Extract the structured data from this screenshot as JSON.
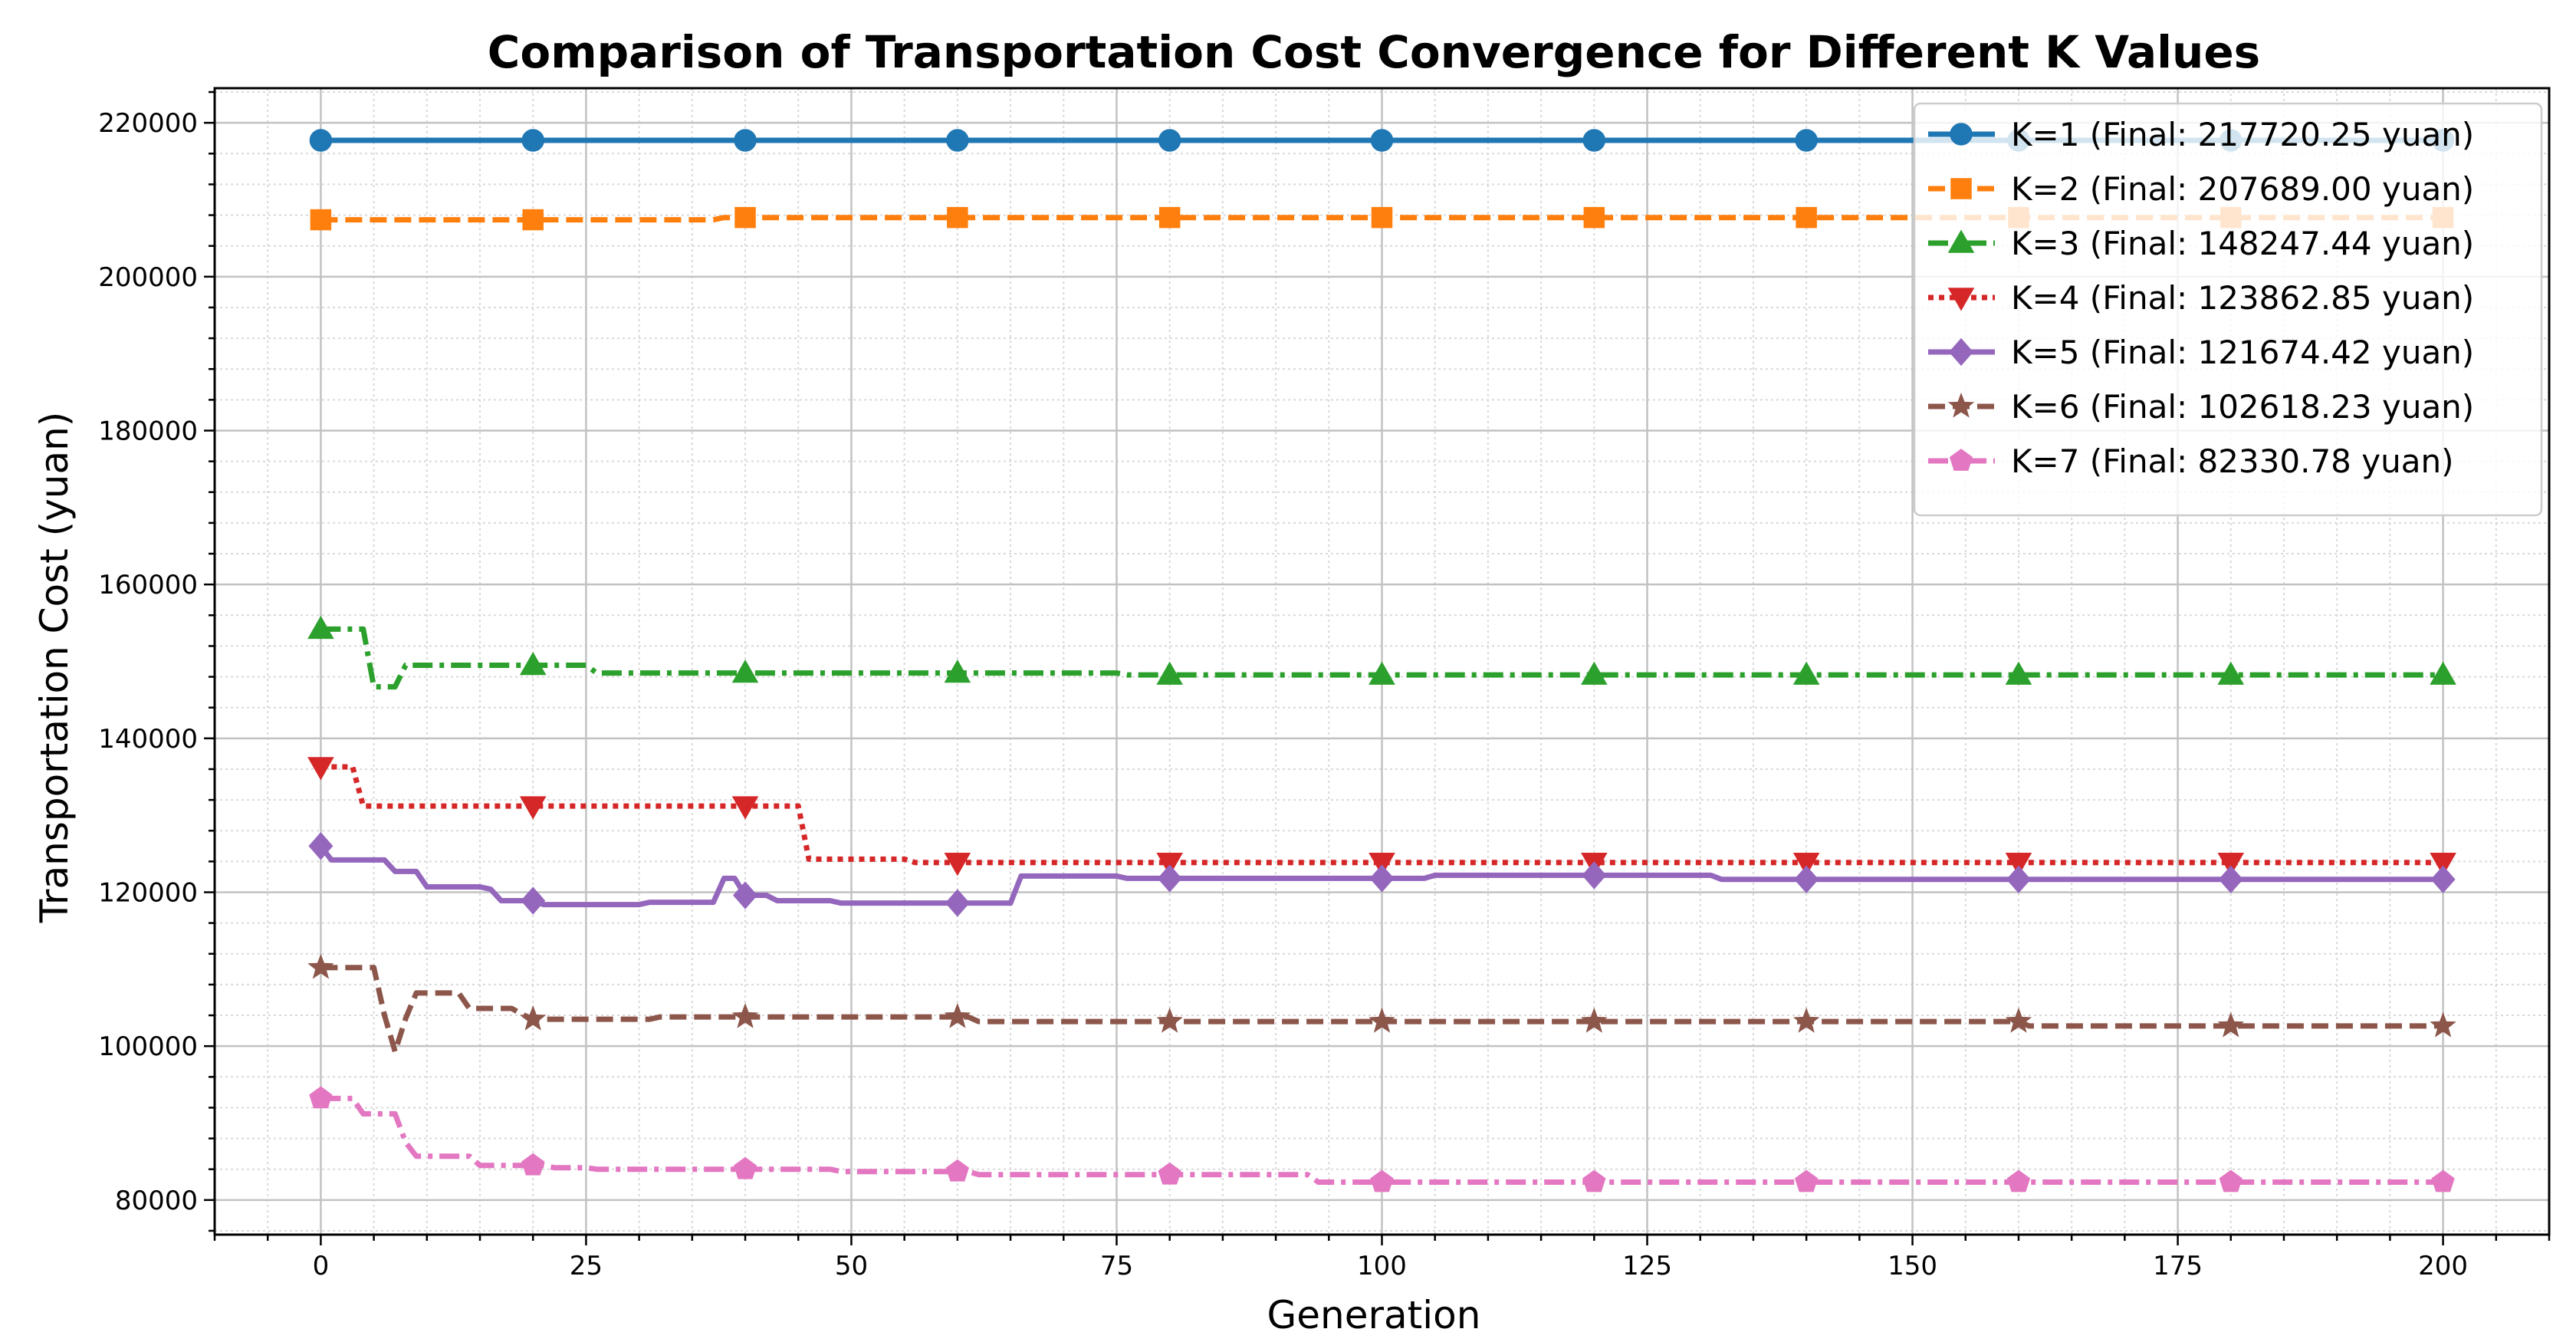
{
  "chart_data": {
    "type": "line",
    "title": "Comparison of Transportation Cost Convergence for Different K Values",
    "xlabel": "Generation",
    "ylabel": "Transportation Cost (yuan)",
    "xlim": [
      -10,
      210
    ],
    "ylim": [
      75500,
      224500
    ],
    "xticks": [
      0,
      25,
      50,
      75,
      100,
      125,
      150,
      175,
      200
    ],
    "yticks": [
      80000,
      100000,
      120000,
      140000,
      160000,
      180000,
      200000,
      220000
    ],
    "xtick_labels": [
      "0",
      "25",
      "50",
      "75",
      "100",
      "125",
      "150",
      "175",
      "200"
    ],
    "ytick_labels": [
      "80000",
      "100000",
      "120000",
      "140000",
      "160000",
      "180000",
      "200000",
      "220000"
    ],
    "grid": true,
    "minor_grid": true,
    "legend_position": "top-right",
    "marker_every": 20,
    "series": [
      {
        "name": "K=1 (Final: 217720.25 yuan)",
        "color": "#1f77b4",
        "marker": "circle",
        "linestyle": "solid",
        "points": [
          [
            0,
            217720.25
          ],
          [
            200,
            217720.25
          ]
        ]
      },
      {
        "name": "K=2 (Final: 207689.00 yuan)",
        "color": "#ff7f0e",
        "marker": "square",
        "linestyle": "dashed",
        "points": [
          [
            0,
            207400
          ],
          [
            37,
            207400
          ],
          [
            38,
            207689
          ],
          [
            200,
            207689
          ]
        ]
      },
      {
        "name": "K=3 (Final: 148247.44 yuan)",
        "color": "#2ca02c",
        "marker": "triangle-up",
        "linestyle": "dashdot",
        "points": [
          [
            0,
            154200
          ],
          [
            4,
            154200
          ],
          [
            5,
            146700
          ],
          [
            7,
            146700
          ],
          [
            8,
            149500
          ],
          [
            25,
            149500
          ],
          [
            26,
            148500
          ],
          [
            75,
            148500
          ],
          [
            76,
            148247.44
          ],
          [
            200,
            148247.44
          ]
        ]
      },
      {
        "name": "K=4 (Final: 123862.85 yuan)",
        "color": "#d62728",
        "marker": "triangle-down",
        "linestyle": "dotted",
        "points": [
          [
            0,
            136300
          ],
          [
            3,
            136300
          ],
          [
            4,
            131200
          ],
          [
            45,
            131200
          ],
          [
            46,
            124300
          ],
          [
            55,
            124300
          ],
          [
            56,
            123862.85
          ],
          [
            200,
            123862.85
          ]
        ]
      },
      {
        "name": "K=5 (Final: 121674.42 yuan)",
        "color": "#9467bd",
        "marker": "diamond",
        "linestyle": "solid",
        "points": [
          [
            0,
            126000
          ],
          [
            1,
            124200
          ],
          [
            6,
            124200
          ],
          [
            7,
            122700
          ],
          [
            9,
            122700
          ],
          [
            10,
            120700
          ],
          [
            15,
            120700
          ],
          [
            16,
            120400
          ],
          [
            17,
            118900
          ],
          [
            20,
            118900
          ],
          [
            21,
            118400
          ],
          [
            30,
            118400
          ],
          [
            31,
            118700
          ],
          [
            37,
            118700
          ],
          [
            38,
            121800
          ],
          [
            39,
            121800
          ],
          [
            40,
            119600
          ],
          [
            42,
            119600
          ],
          [
            43,
            118900
          ],
          [
            48,
            118900
          ],
          [
            49,
            118600
          ],
          [
            65,
            118600
          ],
          [
            66,
            122100
          ],
          [
            75,
            122100
          ],
          [
            76,
            121800
          ],
          [
            104,
            121800
          ],
          [
            105,
            122200
          ],
          [
            131,
            122200
          ],
          [
            132,
            121674.42
          ],
          [
            200,
            121674.42
          ]
        ]
      },
      {
        "name": "K=6 (Final: 102618.23 yuan)",
        "color": "#8c564b",
        "marker": "star",
        "linestyle": "dashed",
        "points": [
          [
            0,
            110200
          ],
          [
            5,
            110200
          ],
          [
            6,
            104000
          ],
          [
            7,
            99300
          ],
          [
            8,
            103600
          ],
          [
            9,
            106900
          ],
          [
            13,
            106900
          ],
          [
            14,
            104900
          ],
          [
            18,
            104900
          ],
          [
            19,
            104100
          ],
          [
            20,
            103500
          ],
          [
            31,
            103500
          ],
          [
            32,
            103800
          ],
          [
            61,
            103800
          ],
          [
            62,
            103200
          ],
          [
            160,
            103200
          ],
          [
            161,
            102618.23
          ],
          [
            200,
            102618.23
          ]
        ]
      },
      {
        "name": "K=7 (Final: 82330.78 yuan)",
        "color": "#e377c2",
        "marker": "pentagon",
        "linestyle": "dashdot",
        "points": [
          [
            0,
            93200
          ],
          [
            3,
            93200
          ],
          [
            4,
            91200
          ],
          [
            7,
            91200
          ],
          [
            8,
            87500
          ],
          [
            9,
            85700
          ],
          [
            14,
            85700
          ],
          [
            15,
            84500
          ],
          [
            21,
            84500
          ],
          [
            22,
            84200
          ],
          [
            25,
            84200
          ],
          [
            26,
            84000
          ],
          [
            48,
            84000
          ],
          [
            49,
            83700
          ],
          [
            61,
            83700
          ],
          [
            62,
            83300
          ],
          [
            93,
            83300
          ],
          [
            94,
            82330.78
          ],
          [
            200,
            82330.78
          ]
        ]
      }
    ]
  }
}
